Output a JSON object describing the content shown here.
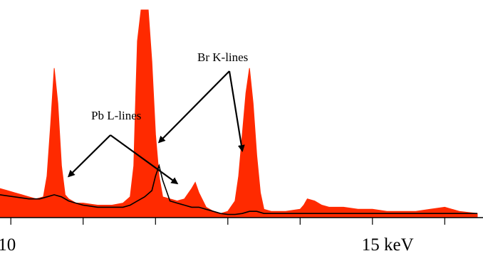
{
  "chart_data": {
    "type": "area",
    "title": "",
    "xlabel": "",
    "ylabel": "",
    "xlim": [
      9.85,
      16.45
    ],
    "ylim": [
      0,
      100
    ],
    "xaxis": {
      "unit": "keV",
      "ticks": [
        10,
        11,
        12,
        13,
        14,
        15,
        16
      ],
      "tick_labels": [
        "10",
        "",
        "",
        "",
        "",
        "15 keV",
        ""
      ]
    },
    "grid": false,
    "legend": "none",
    "series": [
      {
        "name": "",
        "role": "spectrum",
        "color": "#ff2a00",
        "x": [
          9.85,
          9.95,
          10.05,
          10.15,
          10.25,
          10.35,
          10.45,
          10.5,
          10.55,
          10.6,
          10.65,
          10.7,
          10.75,
          10.8,
          10.9,
          11.0,
          11.2,
          11.4,
          11.55,
          11.65,
          11.7,
          11.72,
          11.75,
          11.8,
          11.85,
          11.9,
          11.95,
          12.0,
          12.05,
          12.1,
          12.2,
          12.3,
          12.4,
          12.5,
          12.55,
          12.6,
          12.7,
          12.8,
          12.9,
          13.0,
          13.1,
          13.15,
          13.2,
          13.25,
          13.3,
          13.35,
          13.4,
          13.45,
          13.5,
          13.6,
          13.8,
          14.0,
          14.05,
          14.1,
          14.2,
          14.3,
          14.4,
          14.6,
          14.8,
          15.0,
          15.2,
          15.4,
          15.6,
          15.8,
          16.0,
          16.2,
          16.45
        ],
        "y": [
          14,
          13,
          12,
          11,
          10,
          9,
          10,
          20,
          45,
          72,
          55,
          25,
          11,
          9,
          7,
          7,
          6,
          6,
          7,
          10,
          25,
          50,
          85,
          100,
          100,
          100,
          75,
          40,
          20,
          10,
          9,
          8,
          9,
          14,
          17,
          12,
          5,
          3,
          2,
          3,
          8,
          20,
          40,
          60,
          72,
          55,
          30,
          12,
          4,
          3,
          3,
          4,
          6,
          9,
          8,
          6,
          5,
          5,
          4,
          4,
          3,
          3,
          3,
          4,
          5,
          3,
          2
        ]
      },
      {
        "name": "",
        "role": "background",
        "color": "#000000",
        "x": [
          9.85,
          10.05,
          10.25,
          10.4,
          10.5,
          10.6,
          10.7,
          10.8,
          10.9,
          11.0,
          11.2,
          11.4,
          11.55,
          11.65,
          11.75,
          11.85,
          11.95,
          12.0,
          12.05,
          12.1,
          12.2,
          12.3,
          12.4,
          12.5,
          12.6,
          12.7,
          12.8,
          12.9,
          13.0,
          13.1,
          13.2,
          13.3,
          13.4,
          13.5,
          13.7,
          13.9,
          14.1,
          14.4,
          14.8,
          15.2,
          15.6,
          16.0,
          16.45
        ],
        "y": [
          11,
          10,
          9,
          9,
          10,
          11,
          10,
          8,
          7,
          6,
          5,
          5,
          5,
          6,
          8,
          10,
          13,
          20,
          25,
          18,
          8,
          7,
          6,
          5,
          5,
          4,
          3,
          2,
          1.5,
          1.5,
          2,
          3,
          3,
          2,
          2,
          2,
          2,
          2,
          2,
          2,
          2,
          2,
          2
        ]
      }
    ],
    "annotations": [
      {
        "text": "Pb L-lines",
        "arrow_targets_keV": [
          10.8,
          12.3
        ]
      },
      {
        "text": "Br K-lines",
        "arrow_targets_keV": [
          12.05,
          13.2
        ]
      }
    ]
  }
}
